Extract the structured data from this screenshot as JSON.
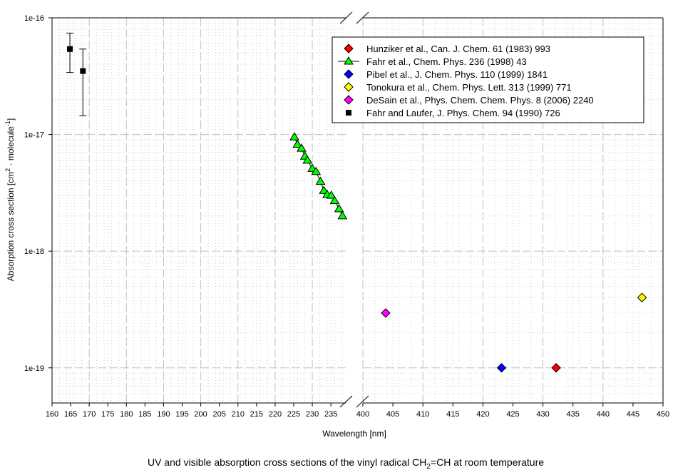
{
  "chart_data": {
    "type": "scatter",
    "title": "UV and visible absorption cross sections of the vinyl radical CH₂=CH at room temperature",
    "title_parts": {
      "pre": "UV and visible absorption cross sections of the vinyl radical CH",
      "sub": "2",
      "post": "=CH at room temperature"
    },
    "xlabel": "Wavelength [nm]",
    "ylabel_parts": {
      "pre": "Absorption cross section [cm",
      "sup1": "2",
      "mid": " · molecule",
      "sup2": "-1",
      "post": "]"
    },
    "yscale": "log",
    "ylim": [
      5e-20,
      1e-16
    ],
    "y_ticks": [
      "1e-19",
      "1e-18",
      "1e-17",
      "1e-16"
    ],
    "x_broken_axis": true,
    "x_segments": [
      {
        "xlim": [
          160,
          239
        ],
        "ticks": [
          160,
          165,
          170,
          175,
          180,
          185,
          190,
          195,
          200,
          205,
          210,
          215,
          220,
          225,
          230,
          235
        ]
      },
      {
        "xlim": [
          400,
          450
        ],
        "ticks": [
          400,
          405,
          410,
          415,
          420,
          425,
          430,
          435,
          440,
          445,
          450
        ]
      }
    ],
    "grid": true,
    "legend_position": "top-right",
    "series": [
      {
        "name": "Hunziker et al., Can. J. Chem. 61 (1983) 993",
        "marker": "diamond",
        "color": "#ff0000",
        "line": false,
        "points": [
          [
            432.2,
            1e-19
          ]
        ]
      },
      {
        "name": "Fahr et al., Chem. Phys. 236 (1998) 43",
        "marker": "triangle",
        "color": "#00ff00",
        "line": true,
        "points": [
          [
            225.2,
            9.5e-18
          ],
          [
            226,
            8.2e-18
          ],
          [
            227.1,
            7.6e-18
          ],
          [
            228,
            6.5e-18
          ],
          [
            228.7,
            6e-18
          ],
          [
            230,
            5.1e-18
          ],
          [
            231,
            4.8e-18
          ],
          [
            232.2,
            3.95e-18
          ],
          [
            233.1,
            3.3e-18
          ],
          [
            234,
            3.05e-18
          ],
          [
            235.1,
            3e-18
          ],
          [
            236,
            2.7e-18
          ],
          [
            237.2,
            2.3e-18
          ],
          [
            238.1,
            2e-18
          ]
        ]
      },
      {
        "name": "Pibel et al., J. Chem. Phys. 110 (1999) 1841",
        "marker": "diamond",
        "color": "#0000ff",
        "line": false,
        "points": [
          [
            423.1,
            1e-19
          ]
        ]
      },
      {
        "name": "Tonokura et al., Chem. Phys. Lett. 313 (1999) 771",
        "marker": "diamond",
        "color": "#ffff00",
        "line": false,
        "points": [
          [
            446.5,
            4e-19
          ]
        ]
      },
      {
        "name": "DeSain et al., Phys. Chem. Chem. Phys. 8 (2006) 2240",
        "marker": "diamond",
        "color": "#ff00ff",
        "line": false,
        "points": [
          [
            403.8,
            2.95e-19
          ]
        ]
      },
      {
        "name": "Fahr and Laufer, J. Phys. Chem. 94 (1990) 726",
        "marker": "square",
        "color": "#000000",
        "line": false,
        "points": [
          [
            164.8,
            5.4e-17,
            3.4e-17,
            7.4e-17
          ],
          [
            168.3,
            3.5e-17,
            1.45e-17,
            5.4e-17
          ]
        ]
      }
    ]
  }
}
